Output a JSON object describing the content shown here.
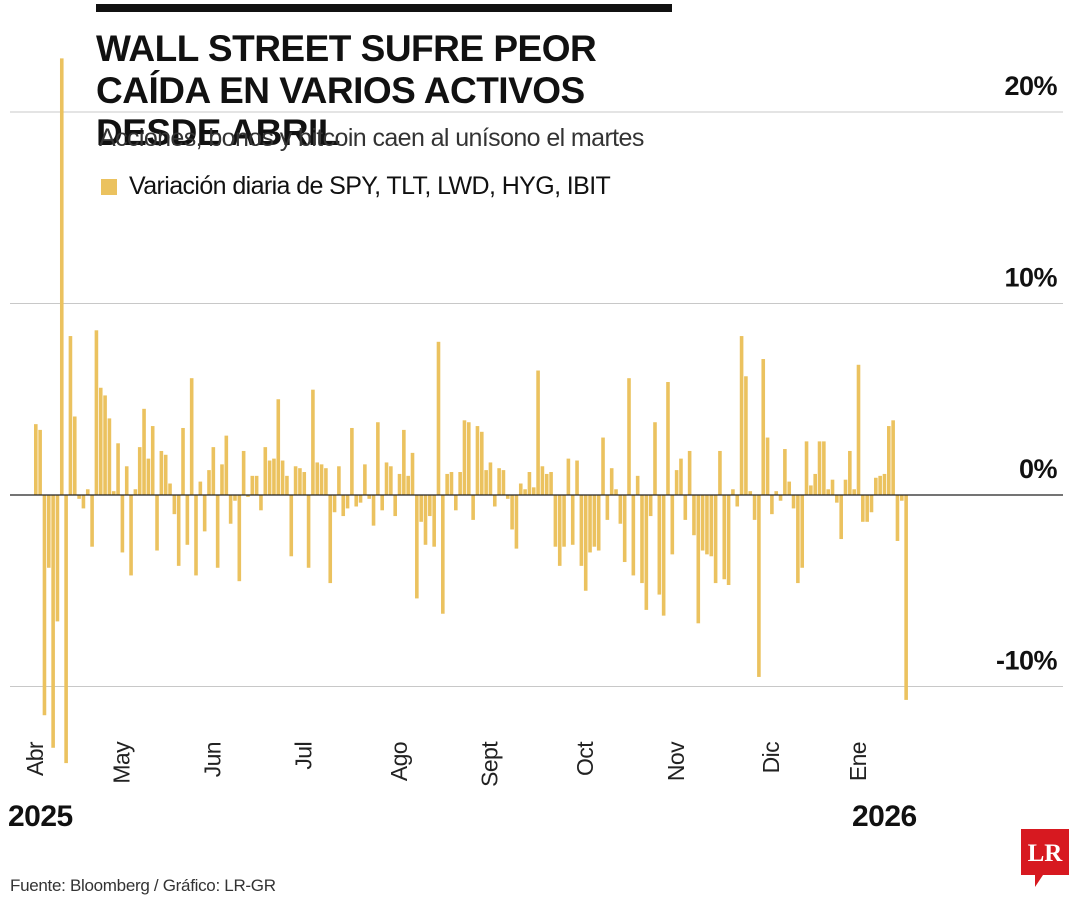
{
  "header": {
    "title": "WALL STREET SUFRE PEOR CAÍDA EN VARIOS ACTIVOS DESDE ABRIL",
    "subtitle": "Acciones, bonos y bitcoin caen al unísono el martes"
  },
  "legend": {
    "label": "Variación diaria de SPY, TLT, LWD, HYG, IBIT",
    "color": "#EBC25F"
  },
  "years": {
    "start": "2025",
    "end": "2026"
  },
  "footer": {
    "source": "Fuente: Bloomberg / Gráfico: LR-GR"
  },
  "logo": {
    "text": "LR",
    "color": "#D71920"
  },
  "colors": {
    "bar": "#EBC25F",
    "axis": "#222222",
    "grid": "#C8C8C8"
  },
  "chart_data": {
    "type": "bar",
    "title": "WALL STREET SUFRE PEOR CAÍDA EN VARIOS ACTIVOS DESDE ABRIL",
    "series_name": "Variación diaria de SPY, TLT, LWD, HYG, IBIT",
    "unit": "%",
    "ylim": [
      -12,
      23
    ],
    "yticks": [
      -10,
      0,
      10,
      20
    ],
    "ytick_labels": [
      "-10%",
      "0%",
      "10%",
      "20%"
    ],
    "xlim": [
      0,
      208
    ],
    "month_ticks": [
      {
        "label": "Abr",
        "index": 0
      },
      {
        "label": "May",
        "index": 20
      },
      {
        "label": "Jun",
        "index": 41
      },
      {
        "label": "Jul",
        "index": 62
      },
      {
        "label": "Ago",
        "index": 84
      },
      {
        "label": "Sept",
        "index": 105
      },
      {
        "label": "Oct",
        "index": 127
      },
      {
        "label": "Nov",
        "index": 148
      },
      {
        "label": "Dic",
        "index": 170
      },
      {
        "label": "Ene",
        "index": 190
      }
    ],
    "values": [
      3.7,
      3.4,
      -11.5,
      -3.8,
      -13.2,
      -6.6,
      22.8,
      -14.0,
      8.3,
      4.1,
      -0.2,
      -0.7,
      0.3,
      -2.7,
      8.6,
      5.6,
      5.2,
      4.0,
      0.2,
      2.7,
      -3.0,
      1.5,
      -4.2,
      0.3,
      2.5,
      4.5,
      1.9,
      3.6,
      -2.9,
      2.3,
      2.1,
      0.6,
      -1.0,
      -3.7,
      3.5,
      -2.6,
      6.1,
      -4.2,
      0.7,
      -1.9,
      1.3,
      2.5,
      -3.8,
      1.6,
      3.1,
      -1.5,
      -0.3,
      -4.5,
      2.3,
      -0.1,
      1.0,
      1.0,
      -0.8,
      2.5,
      1.8,
      1.9,
      5.0,
      1.8,
      1.0,
      -3.2,
      1.5,
      1.4,
      1.2,
      -3.8,
      5.5,
      1.7,
      1.6,
      1.4,
      -4.6,
      -0.9,
      1.5,
      -1.1,
      -0.7,
      3.5,
      -0.6,
      -0.4,
      1.6,
      -0.2,
      -1.6,
      3.8,
      -0.8,
      1.7,
      1.5,
      -1.1,
      1.1,
      3.4,
      1.0,
      2.2,
      -5.4,
      -1.4,
      -2.6,
      -1.1,
      -2.7,
      8.0,
      -6.2,
      1.1,
      1.2,
      -0.8,
      1.2,
      3.9,
      3.8,
      -1.3,
      3.6,
      3.3,
      1.3,
      1.7,
      -0.6,
      1.4,
      1.3,
      -0.2,
      -1.8,
      -2.8,
      0.6,
      0.3,
      1.2,
      0.4,
      6.5,
      1.5,
      1.1,
      1.2,
      -2.7,
      -3.7,
      -2.7,
      1.9,
      -2.6,
      1.8,
      -3.7,
      -5.0,
      -3.0,
      -2.7,
      -2.9,
      3.0,
      -1.3,
      1.4,
      0.3,
      -1.5,
      -3.5,
      6.1,
      -4.2,
      1.0,
      -4.6,
      -6.0,
      -1.1,
      3.8,
      -5.2,
      -6.3,
      5.9,
      -3.1,
      1.3,
      1.9,
      -1.3,
      2.3,
      -2.1,
      -6.7,
      -2.9,
      -3.1,
      -3.2,
      -4.6,
      2.3,
      -4.4,
      -4.7,
      0.3,
      -0.6,
      8.3,
      6.2,
      0.2,
      -1.3,
      -9.5,
      7.1,
      3.0,
      -1.0,
      0.2,
      -0.3,
      2.4,
      0.7,
      -0.7,
      -4.6,
      -3.8,
      2.8,
      0.5,
      1.1,
      2.8,
      2.8,
      0.3,
      0.8,
      -0.4,
      -2.3,
      0.8,
      2.3,
      0.3,
      6.8,
      -1.4,
      -1.4,
      -0.9,
      0.9,
      1.0,
      1.1,
      3.6,
      3.9,
      -2.4,
      -0.3,
      -10.7
    ]
  }
}
